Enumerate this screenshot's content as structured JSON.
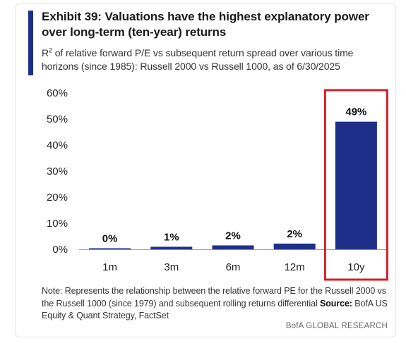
{
  "title": "Exhibit 39: Valuations have the highest explanatory power over long-term (ten-year) returns",
  "subtitle": {
    "prefix": "R",
    "superscript": "2",
    "text": " of relative forward P/E vs subsequent return spread over various time horizons (since 1985): Russell 2000 vs Russell 1000, as of 6/30/2025"
  },
  "note": {
    "text": "Note: Represents the relationship between the relative forward PE for the Russell 2000 vs the Russell 1000 (since 1979) and subsequent rolling returns differential ",
    "source_label": "Source:",
    "source_text": " BofA US Equity & Quant Strategy, FactSet"
  },
  "footer": "BofA GLOBAL RESEARCH",
  "colors": {
    "bar": "#1e2f8a",
    "highlight_border": "#d0202e",
    "accent": "#1e2f8a"
  },
  "chart_data": {
    "type": "bar",
    "categories": [
      "1m",
      "3m",
      "6m",
      "12m",
      "10y"
    ],
    "values": [
      0.4,
      1.0,
      1.5,
      2.2,
      49
    ],
    "data_labels": [
      "0%",
      "1%",
      "2%",
      "2%",
      "49%"
    ],
    "y_ticks": [
      "0%",
      "10%",
      "20%",
      "30%",
      "40%",
      "50%",
      "60%"
    ],
    "ylim": [
      0,
      60
    ],
    "grid": false,
    "highlighted_category": "10y"
  }
}
